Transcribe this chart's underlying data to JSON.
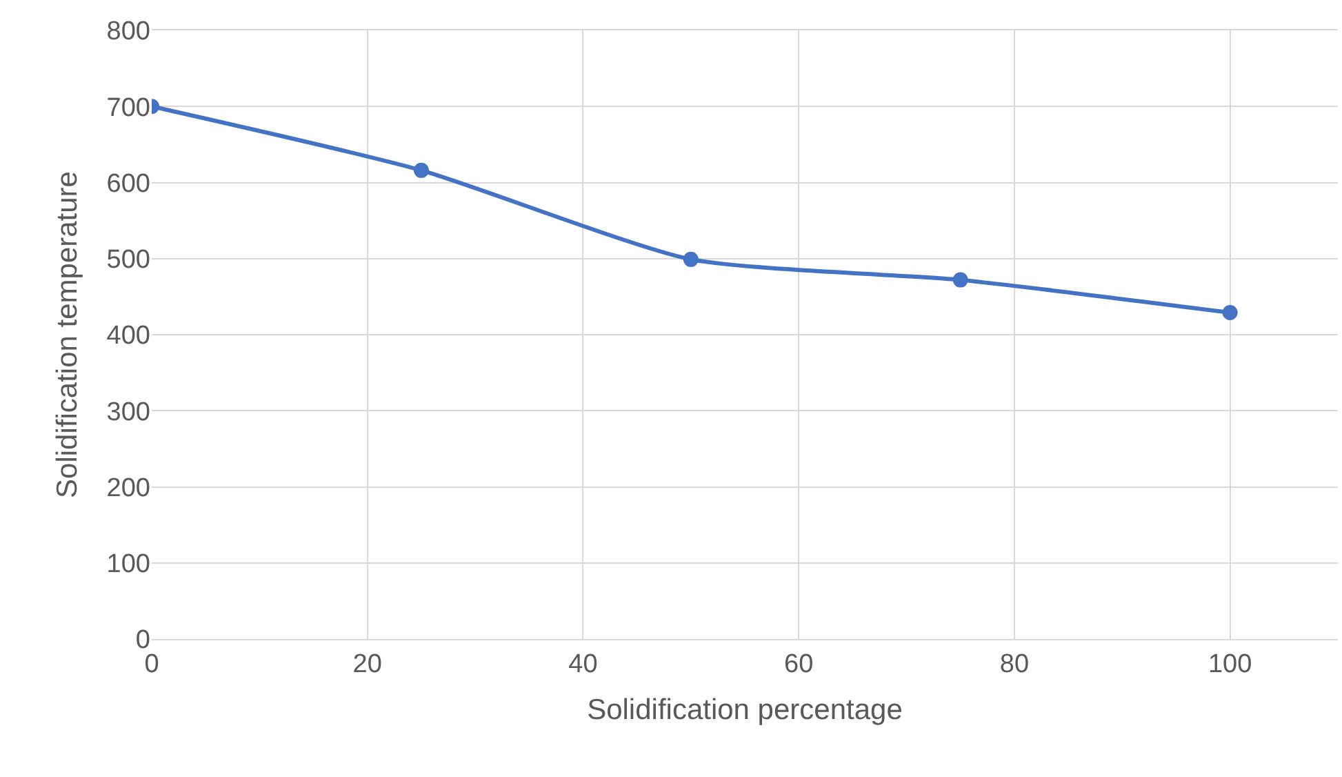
{
  "chart_data": {
    "type": "line",
    "xlabel": "Solidification percentage",
    "ylabel": "Solidification temperature",
    "x": [
      0,
      25,
      50,
      75,
      100
    ],
    "series": [
      {
        "color": "#4472c4",
        "values": [
          700,
          616,
          499,
          472,
          429
        ]
      }
    ],
    "xlim": [
      0,
      110
    ],
    "xticks": [
      0,
      20,
      40,
      60,
      80,
      100
    ],
    "ylim": [
      0,
      800
    ],
    "yticks": [
      0,
      100,
      200,
      300,
      400,
      500,
      600,
      700,
      800
    ],
    "grid": true,
    "marker": "circle",
    "line_style": "solid"
  }
}
